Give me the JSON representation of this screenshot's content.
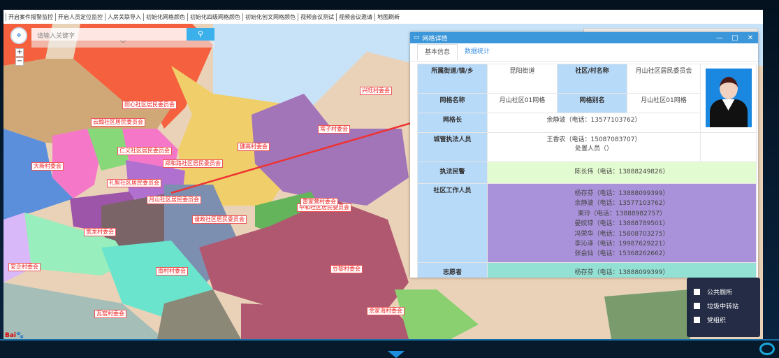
{
  "menu": [
    "开启案件报警监控",
    "开启人员定位监控",
    "人房关联导入",
    "初始化网格颜色",
    "初始化四级网格颜色",
    "初始化创文网格颜色",
    "视频会议测试",
    "视频会议邀请",
    "地图刷新"
  ],
  "search": {
    "placeholder": "请输入关键字",
    "icon": "search-icon",
    "expand_icon": "chevron-down-icon"
  },
  "map_labels": [
    "田心社区居民委员会",
    "云翰社区居民委员会",
    "仁义社区居民委员会",
    "郑和路社区居民委员会",
    "大新村委会",
    "礼智社区居民委员会",
    "月山社区居民委员会",
    "健高村委会",
    "兴旺村委会",
    "常子村委会",
    "中和社区居民委员会",
    "雷家营村委会",
    "谨政社区居民委员会",
    "宽龙村委会",
    "安企村委会",
    "南村村委会",
    "豆黎村委会",
    "瓦窑村委会",
    "余家海村委会"
  ],
  "logo": "Bai度地图",
  "dialog": {
    "title": "网格详情",
    "tabs": [
      "基本信息",
      "数据统计"
    ],
    "active_tab": "基本信息",
    "fields": {
      "street_label": "所属街道/镇/乡",
      "street": "昆阳街道",
      "community_label": "社区/村名称",
      "community": "月山社区居民委员会",
      "grid_name_label": "网格名称",
      "grid_name": "月山社区01网格",
      "grid_alias_label": "网格别名",
      "grid_alias": "月山社区01网格",
      "grid_leader_label": "网格长",
      "grid_leader": "余静波（电话：13577103762）",
      "enforcement_label": "城管执法人员",
      "enforcement": "王香农（电话：15087083707）",
      "handler": "处置人员（）",
      "police_label": "执法民警",
      "police": "陈长伟（电话：13888249826）",
      "workers_label": "社区工作人员",
      "workers": [
        "杨存芬（电话：13888099399）",
        "余静波（电话：13577103762）",
        "柬玲（电话：13888982757）",
        "晏姣琼（电话：13888789501）",
        "冯荣华（电话：15808703275）",
        "李沁泽（电话：19987629221）",
        "张会仙（电话：15368262662）"
      ],
      "volunteer_label": "志愿者",
      "volunteer": "杨存芬（电话：13888099399）"
    }
  },
  "legend": [
    "公共厕所",
    "垃圾中转站",
    "党组织"
  ],
  "colors": {
    "header": "#3b97d9",
    "label_cell": "#b8daf9",
    "police_row": "#e3fbd0",
    "workers_row": "#a992d9",
    "volunteer_row": "#93e0d4",
    "arrow": "#ee3333"
  }
}
